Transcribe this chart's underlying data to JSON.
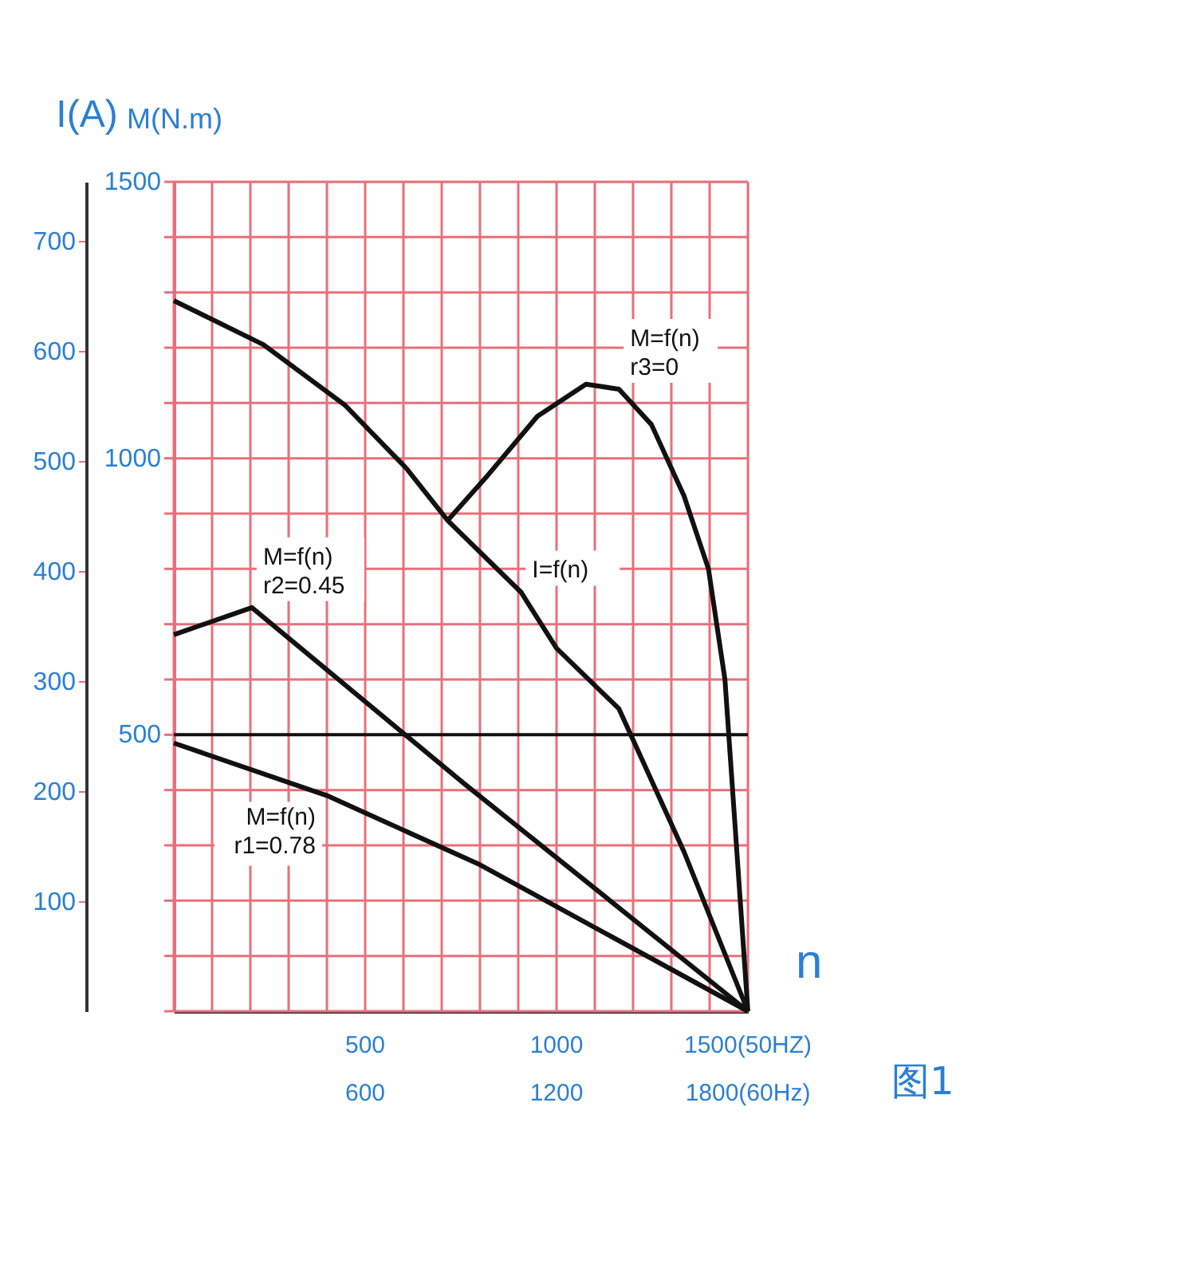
{
  "chart_data": {
    "type": "line",
    "xlabel": "n",
    "ylabel": "I(A)",
    "y2label": "M(N.m)",
    "xlim": [
      0,
      1500
    ],
    "xticks": [
      {
        "value": 0,
        "label": null
      },
      {
        "value": 100,
        "label": null
      },
      {
        "value": 200,
        "label": null
      },
      {
        "value": 300,
        "label": null
      },
      {
        "value": 400,
        "label": null
      },
      500,
      {
        "value": 600,
        "label": null
      },
      {
        "value": 700,
        "label": null
      },
      {
        "value": 800,
        "label": null
      },
      {
        "value": 900,
        "label": null
      },
      1000,
      {
        "value": 1100,
        "label": null
      },
      {
        "value": 1200,
        "label": null
      },
      {
        "value": 1300,
        "label": null
      },
      {
        "value": 1400,
        "label": null
      },
      {
        "value": 1500,
        "label": "1500(50HZ)"
      }
    ],
    "x2lim": [
      0,
      1800
    ],
    "x2ticks": [
      600,
      1200,
      {
        "value": 1800,
        "label": "1800(60Hz)"
      }
    ],
    "ylim": [
      0,
      754
    ],
    "yticks": [
      100,
      200,
      300,
      400,
      500,
      600,
      700
    ],
    "y2lim": [
      0,
      1500
    ],
    "y2ticks": [
      {
        "value": 0,
        "label": null
      },
      {
        "value": 100,
        "label": null
      },
      {
        "value": 200,
        "label": null
      },
      {
        "value": 300,
        "label": null
      },
      {
        "value": 400,
        "label": null
      },
      500,
      {
        "value": 600,
        "label": null
      },
      {
        "value": 700,
        "label": null
      },
      {
        "value": 800,
        "label": null
      },
      {
        "value": 900,
        "label": null
      },
      1000,
      {
        "value": 1100,
        "label": null
      },
      {
        "value": 1200,
        "label": null
      },
      {
        "value": 1300,
        "label": null
      },
      {
        "value": 1400,
        "label": null
      },
      1500
    ],
    "grid": true,
    "legend": false,
    "marker": "none",
    "line_style": "solid",
    "series": [
      {
        "name": "I=f(n)",
        "color": "#111111",
        "x": [
          0,
          234,
          447,
          609,
          716,
          907,
          1000,
          1163,
          1333,
          1500
        ],
        "values": [
          646,
          606,
          551,
          493,
          446,
          381,
          330,
          275,
          145,
          0
        ]
      },
      {
        "name": "M=f(n) r3=0",
        "color": "#111111",
        "axis": "y2",
        "x": [
          716,
          820,
          950,
          1077,
          1163,
          1248,
          1333,
          1397,
          1440,
          1500
        ],
        "values": [
          888,
          969,
          1076,
          1134,
          1125,
          1061,
          932,
          800,
          600,
          0
        ]
      },
      {
        "name": "M=f(n) r2=0.45",
        "color": "#111111",
        "axis": "y2",
        "x": [
          0,
          204,
          758,
          1500
        ],
        "values": [
          681,
          730,
          412,
          0
        ]
      },
      {
        "name": "M=f(n) r1=0.78",
        "color": "#111111",
        "axis": "y2",
        "x": [
          0,
          400,
          800,
          1500
        ],
        "values": [
          485,
          390,
          265,
          0
        ]
      }
    ],
    "ref_lines": [
      {
        "axis": "y2",
        "value": 500,
        "color": "#111111"
      }
    ],
    "annotations": [
      "图1"
    ]
  }
}
